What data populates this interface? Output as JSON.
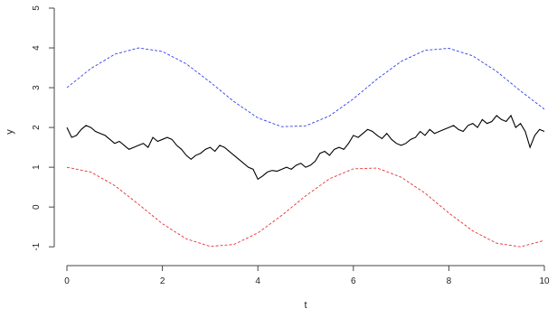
{
  "chart_data": {
    "type": "line",
    "title": "",
    "xlabel": "t",
    "ylabel": "y",
    "xlim": [
      0,
      10
    ],
    "ylim": [
      -1.2,
      5
    ],
    "x_ticks": [
      "0",
      "2",
      "4",
      "6",
      "8",
      "10"
    ],
    "y_ticks": [
      "-1",
      "0",
      "1",
      "2",
      "3",
      "4",
      "5"
    ],
    "grid": false,
    "legend": "none",
    "series": [
      {
        "style": "dashed",
        "color": "#2f3fe8",
        "x": [
          0,
          0.5,
          1,
          1.5,
          2,
          2.5,
          3,
          3.5,
          4,
          4.5,
          5,
          5.5,
          6,
          6.5,
          7,
          7.5,
          8,
          8.5,
          9,
          9.5,
          10
        ],
        "y": [
          3.0,
          3.48,
          3.84,
          4.0,
          3.91,
          3.6,
          3.14,
          2.65,
          2.24,
          2.02,
          2.04,
          2.29,
          2.72,
          3.22,
          3.66,
          3.94,
          3.99,
          3.8,
          3.41,
          2.92,
          2.46
        ]
      },
      {
        "style": "dashed",
        "color": "#e83030",
        "x": [
          0,
          0.5,
          1,
          1.5,
          2,
          2.5,
          3,
          3.5,
          4,
          4.5,
          5,
          5.5,
          6,
          6.5,
          7,
          7.5,
          8,
          8.5,
          9,
          9.5,
          10
        ],
        "y": [
          1.0,
          0.88,
          0.54,
          0.07,
          -0.42,
          -0.8,
          -0.99,
          -0.94,
          -0.65,
          -0.21,
          0.28,
          0.71,
          0.96,
          0.98,
          0.75,
          0.35,
          -0.15,
          -0.6,
          -0.91,
          -1.0,
          -0.84
        ]
      },
      {
        "style": "solid",
        "color": "#000000",
        "x": [
          0,
          0.1,
          0.2,
          0.3,
          0.4,
          0.5,
          0.6,
          0.7,
          0.8,
          0.9,
          1.0,
          1.1,
          1.2,
          1.3,
          1.4,
          1.5,
          1.6,
          1.7,
          1.8,
          1.9,
          2.0,
          2.1,
          2.2,
          2.3,
          2.4,
          2.5,
          2.6,
          2.7,
          2.8,
          2.9,
          3.0,
          3.1,
          3.2,
          3.3,
          3.4,
          3.5,
          3.6,
          3.7,
          3.8,
          3.9,
          4.0,
          4.1,
          4.2,
          4.3,
          4.4,
          4.5,
          4.6,
          4.7,
          4.8,
          4.9,
          5.0,
          5.1,
          5.2,
          5.3,
          5.4,
          5.5,
          5.6,
          5.7,
          5.8,
          5.9,
          6.0,
          6.1,
          6.2,
          6.3,
          6.4,
          6.5,
          6.6,
          6.7,
          6.8,
          6.9,
          7.0,
          7.1,
          7.2,
          7.3,
          7.4,
          7.5,
          7.6,
          7.7,
          7.8,
          7.9,
          8.0,
          8.1,
          8.2,
          8.3,
          8.4,
          8.5,
          8.6,
          8.7,
          8.8,
          8.9,
          9.0,
          9.1,
          9.2,
          9.3,
          9.4,
          9.5,
          9.6,
          9.7,
          9.8,
          9.9,
          10.0
        ],
        "y": [
          2.0,
          1.75,
          1.8,
          1.95,
          2.05,
          2.0,
          1.9,
          1.85,
          1.8,
          1.7,
          1.6,
          1.65,
          1.55,
          1.45,
          1.5,
          1.55,
          1.6,
          1.5,
          1.75,
          1.65,
          1.7,
          1.75,
          1.7,
          1.55,
          1.45,
          1.3,
          1.2,
          1.3,
          1.35,
          1.45,
          1.5,
          1.4,
          1.55,
          1.5,
          1.4,
          1.3,
          1.2,
          1.1,
          1.0,
          0.95,
          0.7,
          0.78,
          0.88,
          0.92,
          0.9,
          0.95,
          1.0,
          0.95,
          1.05,
          1.1,
          1.0,
          1.05,
          1.15,
          1.35,
          1.4,
          1.3,
          1.45,
          1.5,
          1.45,
          1.6,
          1.8,
          1.75,
          1.85,
          1.95,
          1.9,
          1.8,
          1.72,
          1.85,
          1.7,
          1.6,
          1.55,
          1.6,
          1.7,
          1.75,
          1.9,
          1.8,
          1.95,
          1.85,
          1.9,
          1.95,
          2.0,
          2.05,
          1.95,
          1.9,
          2.05,
          2.1,
          2.0,
          2.2,
          2.1,
          2.15,
          2.3,
          2.2,
          2.15,
          2.3,
          2.0,
          2.1,
          1.9,
          1.5,
          1.8,
          1.95,
          1.9
        ]
      }
    ]
  }
}
